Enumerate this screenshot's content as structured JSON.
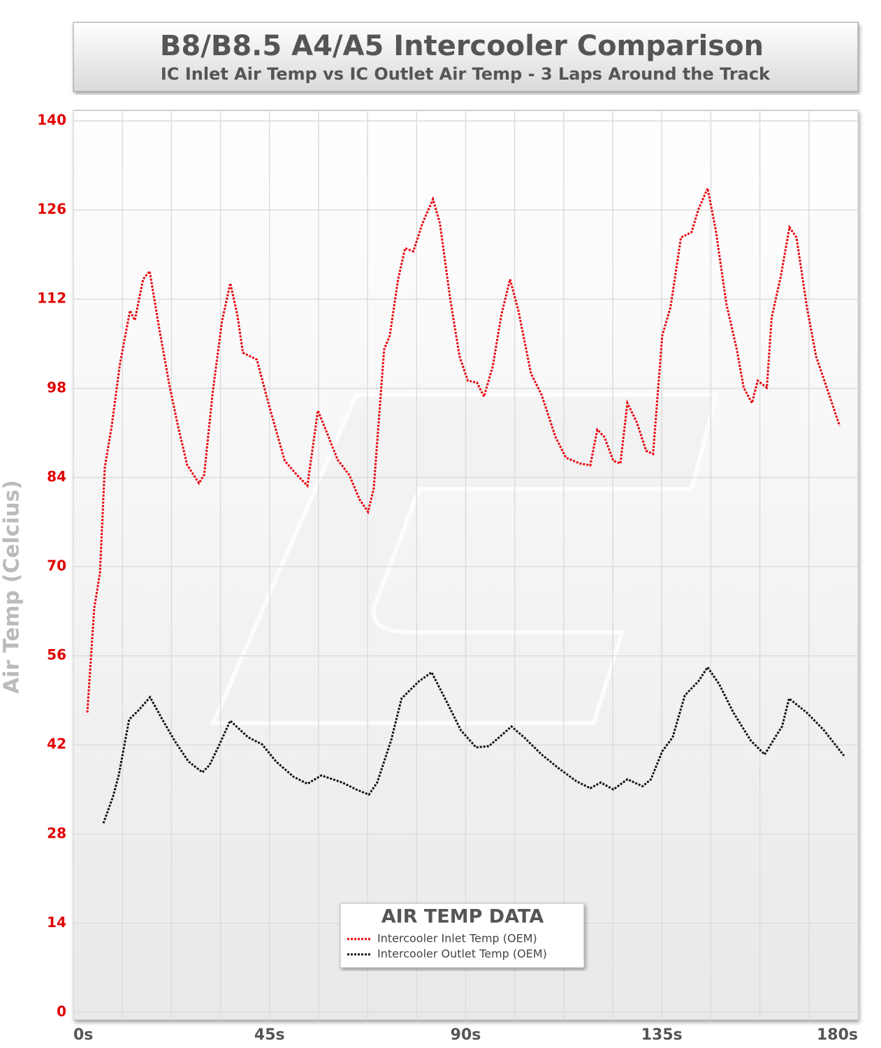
{
  "chart_data": {
    "type": "line",
    "title": "B8/B8.5 A4/A5 Intercooler Comparison",
    "subtitle": "IC Inlet Air Temp vs IC Outlet Air Temp - 3 Laps Around the Track",
    "y_label": "Air Temp (Celcius)",
    "legend_title": "AIR TEMP DATA",
    "legend_position": "bottom-center",
    "grid": true,
    "xlim": [
      0,
      180
    ],
    "xticks": [
      {
        "value": 0,
        "label": "0s"
      },
      {
        "value": 45,
        "label": "45s"
      },
      {
        "value": 90,
        "label": "90s"
      },
      {
        "value": 135,
        "label": "135s"
      },
      {
        "value": 180,
        "label": "180s"
      }
    ],
    "x_minor_ticks": [
      11.25,
      22.5,
      33.75,
      56.25,
      67.5,
      78.75,
      101.25,
      112.5,
      123.75,
      146.25,
      157.5,
      168.75
    ],
    "ylim": [
      0,
      140
    ],
    "yticks": [
      0,
      14,
      28,
      42,
      56,
      70,
      84,
      98,
      112,
      126,
      140
    ],
    "series": [
      {
        "name": "Intercooler Inlet Temp (OEM)",
        "color": "#e8000b",
        "x": [
          3.2,
          4.8,
          6.1,
          7.2,
          8.8,
          10.7,
          13.0,
          14.1,
          16.0,
          17.5,
          19.7,
          22.0,
          24.0,
          26.1,
          28.8,
          30.0,
          32.0,
          34.1,
          36.0,
          37.6,
          38.9,
          42.1,
          44.9,
          48.5,
          51.3,
          53.7,
          56.1,
          58.2,
          60.6,
          63.3,
          65.7,
          67.6,
          68.9,
          71.3,
          72.6,
          74.5,
          76.1,
          78.0,
          80.1,
          82.5,
          84.1,
          86.5,
          88.6,
          90.5,
          92.6,
          94.2,
          96.2,
          98.2,
          100.2,
          102.1,
          105.0,
          107.4,
          110.6,
          113.0,
          116.2,
          118.6,
          120.2,
          121.8,
          123.9,
          125.5,
          127.1,
          129.3,
          131.4,
          133.0,
          135.1,
          137.0,
          139.4,
          141.8,
          143.4,
          145.5,
          147.4,
          149.8,
          152.2,
          153.8,
          155.7,
          157.0,
          159.1,
          160.2,
          162.3,
          164.3,
          165.9,
          168.3,
          170.4,
          172.3,
          175.8
        ],
        "values": [
          47.1,
          63.5,
          69.0,
          85.5,
          92.1,
          101.9,
          110.2,
          108.7,
          115.1,
          116.4,
          107.4,
          98.6,
          92.1,
          86.0,
          83.1,
          84.4,
          97.5,
          108.5,
          114.5,
          109.6,
          103.6,
          102.5,
          95.3,
          86.6,
          84.4,
          82.7,
          94.5,
          91.0,
          86.8,
          84.4,
          80.5,
          78.6,
          82.2,
          104.1,
          106.3,
          115.1,
          120.0,
          119.5,
          123.9,
          127.7,
          123.9,
          111.8,
          103.0,
          99.2,
          98.9,
          96.7,
          101.4,
          109.6,
          115.1,
          110.2,
          100.3,
          97.0,
          90.4,
          87.1,
          86.2,
          85.9,
          91.5,
          90.4,
          86.6,
          86.2,
          95.7,
          92.6,
          88.2,
          87.7,
          106.3,
          110.7,
          121.7,
          122.5,
          126.1,
          129.4,
          122.8,
          111.3,
          104.1,
          98.1,
          95.7,
          99.2,
          98.1,
          109.1,
          115.6,
          123.3,
          121.7,
          110.7,
          103.0,
          99.2,
          92.1
        ]
      },
      {
        "name": "Intercooler Outlet Temp (OEM)",
        "color": "#111111",
        "x": [
          6.9,
          9.1,
          10.4,
          12.8,
          14.9,
          17.6,
          20.4,
          23.2,
          26.4,
          29.6,
          31.2,
          33.2,
          36.0,
          40.1,
          43.3,
          46.5,
          50.5,
          53.7,
          56.9,
          61.7,
          64.9,
          67.8,
          69.7,
          72.9,
          75.3,
          79.3,
          82.2,
          85.7,
          88.9,
          92.4,
          95.3,
          97.7,
          100.5,
          103.4,
          107.4,
          111.4,
          115.4,
          118.6,
          121.0,
          123.9,
          127.1,
          130.6,
          132.5,
          135.1,
          137.5,
          140.3,
          143.4,
          145.5,
          148.2,
          151.4,
          155.4,
          158.6,
          161.0,
          162.6,
          164.2,
          168.2,
          172.2,
          176.8
        ],
        "values": [
          29.7,
          33.9,
          37.2,
          46.0,
          47.4,
          49.5,
          46.0,
          42.7,
          39.4,
          37.7,
          38.8,
          41.6,
          45.8,
          43.2,
          42.1,
          39.4,
          37.0,
          35.9,
          37.2,
          36.1,
          35.0,
          34.2,
          36.1,
          42.7,
          49.3,
          52.0,
          53.4,
          48.7,
          44.3,
          41.6,
          41.8,
          43.2,
          44.9,
          43.2,
          40.5,
          38.3,
          36.3,
          35.2,
          36.1,
          35.0,
          36.6,
          35.5,
          36.6,
          41.0,
          43.2,
          49.8,
          52.0,
          54.2,
          51.5,
          47.1,
          42.7,
          40.5,
          43.2,
          44.9,
          49.3,
          47.1,
          44.3,
          40.3
        ]
      }
    ]
  }
}
